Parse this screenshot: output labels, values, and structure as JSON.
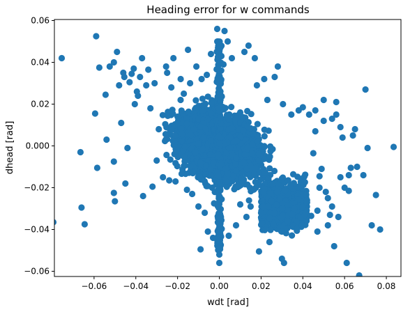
{
  "chart_data": {
    "type": "scatter",
    "title": "Heading error for w commands",
    "xlabel": "wdt [rad]",
    "ylabel": "dhead [rad]",
    "xlim": [
      -0.079,
      0.087
    ],
    "ylim": [
      -0.0625,
      0.0605
    ],
    "x_ticks": [
      -0.06,
      -0.04,
      -0.02,
      0.0,
      0.02,
      0.04,
      0.06,
      0.08
    ],
    "x_tick_labels": [
      "−0.06",
      "−0.04",
      "−0.02",
      "0.00",
      "0.02",
      "0.04",
      "0.06",
      "0.08"
    ],
    "y_ticks": [
      -0.06,
      -0.04,
      -0.02,
      0.0,
      0.02,
      0.04,
      0.06
    ],
    "y_tick_labels": [
      "−0.06",
      "−0.04",
      "−0.02",
      "0.000",
      "0.02",
      "0.04",
      "0.06"
    ],
    "grid": false,
    "marker_color": "#1f77b4",
    "points": [
      [
        -0.0755,
        0.042
      ],
      [
        -0.0795,
        -0.0365
      ],
      [
        -0.0665,
        -0.003
      ],
      [
        -0.066,
        -0.0295
      ],
      [
        -0.0645,
        -0.0375
      ],
      [
        -0.0595,
        0.0155
      ],
      [
        -0.0585,
        -0.0105
      ],
      [
        -0.059,
        0.0525
      ],
      [
        -0.0575,
        0.0375
      ],
      [
        -0.0545,
        0.0245
      ],
      [
        -0.054,
        0.003
      ],
      [
        -0.0525,
        0.038
      ],
      [
        -0.0505,
        0.04
      ],
      [
        -0.0505,
        -0.0075
      ],
      [
        -0.0505,
        -0.0225
      ],
      [
        -0.05,
        -0.0265
      ],
      [
        -0.049,
        0.045
      ],
      [
        -0.048,
        0.029
      ],
      [
        -0.047,
        0.011
      ],
      [
        -0.046,
        0.035
      ],
      [
        -0.0455,
        0.033
      ],
      [
        -0.045,
        -0.018
      ],
      [
        -0.044,
        -0.001
      ],
      [
        -0.043,
        0.0305
      ],
      [
        -0.042,
        0.0345
      ],
      [
        -0.041,
        0.037
      ],
      [
        -0.0405,
        0.02
      ],
      [
        -0.0395,
        0.026
      ],
      [
        -0.039,
        0.024
      ],
      [
        -0.038,
        0.033
      ],
      [
        -0.037,
        0.042
      ],
      [
        -0.0365,
        -0.024
      ],
      [
        -0.035,
        0.029
      ],
      [
        -0.034,
        0.0365
      ],
      [
        -0.033,
        0.018
      ],
      [
        -0.032,
        -0.0195
      ],
      [
        -0.031,
        0.03
      ],
      [
        -0.03,
        -0.007
      ],
      [
        -0.029,
        0.008
      ],
      [
        -0.027,
        -0.015
      ],
      [
        -0.0255,
        0.038
      ],
      [
        -0.025,
        0.035
      ],
      [
        -0.024,
        -0.0165
      ],
      [
        -0.023,
        0.028
      ],
      [
        -0.022,
        0.042
      ],
      [
        -0.021,
        -0.017
      ],
      [
        -0.02,
        0.014
      ],
      [
        -0.0185,
        0.032
      ],
      [
        -0.017,
        0.025
      ],
      [
        -0.0155,
        -0.021
      ],
      [
        -0.015,
        0.046
      ],
      [
        -0.014,
        0.03
      ],
      [
        -0.013,
        -0.023
      ],
      [
        -0.011,
        0.038
      ],
      [
        -0.01,
        -0.029
      ],
      [
        -0.009,
        -0.0495
      ],
      [
        -0.0085,
        0.032
      ],
      [
        -0.007,
        -0.032
      ],
      [
        -0.006,
        0.034
      ],
      [
        -0.0055,
        -0.041
      ],
      [
        -0.004,
        0.044
      ],
      [
        -0.003,
        -0.044
      ],
      [
        -0.0025,
        -0.0275
      ],
      [
        -0.001,
        0.056
      ],
      [
        -0.0005,
        0.048
      ],
      [
        0.0,
        0.045
      ],
      [
        0.0,
        -0.052
      ],
      [
        0.0,
        -0.056
      ],
      [
        0.0,
        -0.049
      ],
      [
        0.0005,
        -0.0345
      ],
      [
        0.001,
        0.043
      ],
      [
        0.002,
        0.039
      ],
      [
        0.0025,
        0.055
      ],
      [
        0.004,
        0.05
      ],
      [
        0.0045,
        -0.043
      ],
      [
        0.006,
        0.042
      ],
      [
        0.008,
        -0.038
      ],
      [
        0.01,
        -0.028
      ],
      [
        0.012,
        0.045
      ],
      [
        0.013,
        -0.034
      ],
      [
        0.014,
        0.048
      ],
      [
        0.015,
        -0.029
      ],
      [
        0.017,
        0.042
      ],
      [
        0.018,
        0.029
      ],
      [
        0.02,
        -0.032
      ],
      [
        0.0215,
        0.032
      ],
      [
        0.023,
        0.022
      ],
      [
        0.024,
        -0.046
      ],
      [
        0.025,
        -0.0265
      ],
      [
        0.0265,
        0.033
      ],
      [
        0.028,
        0.038
      ],
      [
        0.029,
        -0.039
      ],
      [
        0.03,
        -0.054
      ],
      [
        0.0305,
        0.02
      ],
      [
        0.0315,
        -0.0395
      ],
      [
        0.033,
        -0.0165
      ],
      [
        0.0345,
        0.015
      ],
      [
        0.036,
        -0.0275
      ],
      [
        0.037,
        -0.0295
      ],
      [
        0.038,
        0.017
      ],
      [
        0.0395,
        -0.038
      ],
      [
        0.04,
        0.0185
      ],
      [
        0.041,
        -0.033
      ],
      [
        0.042,
        -0.027
      ],
      [
        0.043,
        0.015
      ],
      [
        0.044,
        -0.0335
      ],
      [
        0.045,
        -0.0035
      ],
      [
        0.046,
        0.017
      ],
      [
        0.047,
        -0.041
      ],
      [
        0.048,
        -0.0145
      ],
      [
        0.049,
        -0.011
      ],
      [
        0.05,
        0.012
      ],
      [
        0.051,
        -0.022
      ],
      [
        0.052,
        -0.038
      ],
      [
        0.053,
        -0.033
      ],
      [
        0.054,
        0.013
      ],
      [
        0.055,
        -0.048
      ],
      [
        0.056,
        0.021
      ],
      [
        0.057,
        -0.034
      ],
      [
        0.058,
        0.009
      ],
      [
        0.059,
        0.004
      ],
      [
        0.06,
        -0.02
      ],
      [
        0.061,
        -0.056
      ],
      [
        0.062,
        -0.014
      ],
      [
        0.063,
        -0.0105
      ],
      [
        0.064,
        0.005
      ],
      [
        0.066,
        -0.01
      ],
      [
        0.067,
        -0.062
      ],
      [
        0.069,
        -0.014
      ],
      [
        0.07,
        0.027
      ],
      [
        0.071,
        -0.001
      ],
      [
        0.073,
        -0.038
      ],
      [
        0.075,
        -0.0235
      ],
      [
        0.077,
        -0.04
      ],
      [
        0.0835,
        -0.0005
      ],
      [
        0.019,
        -0.0505
      ],
      [
        0.031,
        -0.056
      ],
      [
        0.03,
        -0.041
      ],
      [
        0.036,
        -0.03
      ],
      [
        0.05,
        0.022
      ],
      [
        0.046,
        0.007
      ],
      [
        0.047,
        -0.031
      ],
      [
        0.052,
        -0.025
      ],
      [
        0.054,
        -0.029
      ],
      [
        0.042,
        -0.026
      ],
      [
        0.062,
        -0.0215
      ],
      [
        0.065,
        0.008
      ],
      [
        0.056,
        0.015
      ],
      [
        0.048,
        -0.02
      ],
      [
        0.058,
        -0.015
      ]
    ]
  }
}
